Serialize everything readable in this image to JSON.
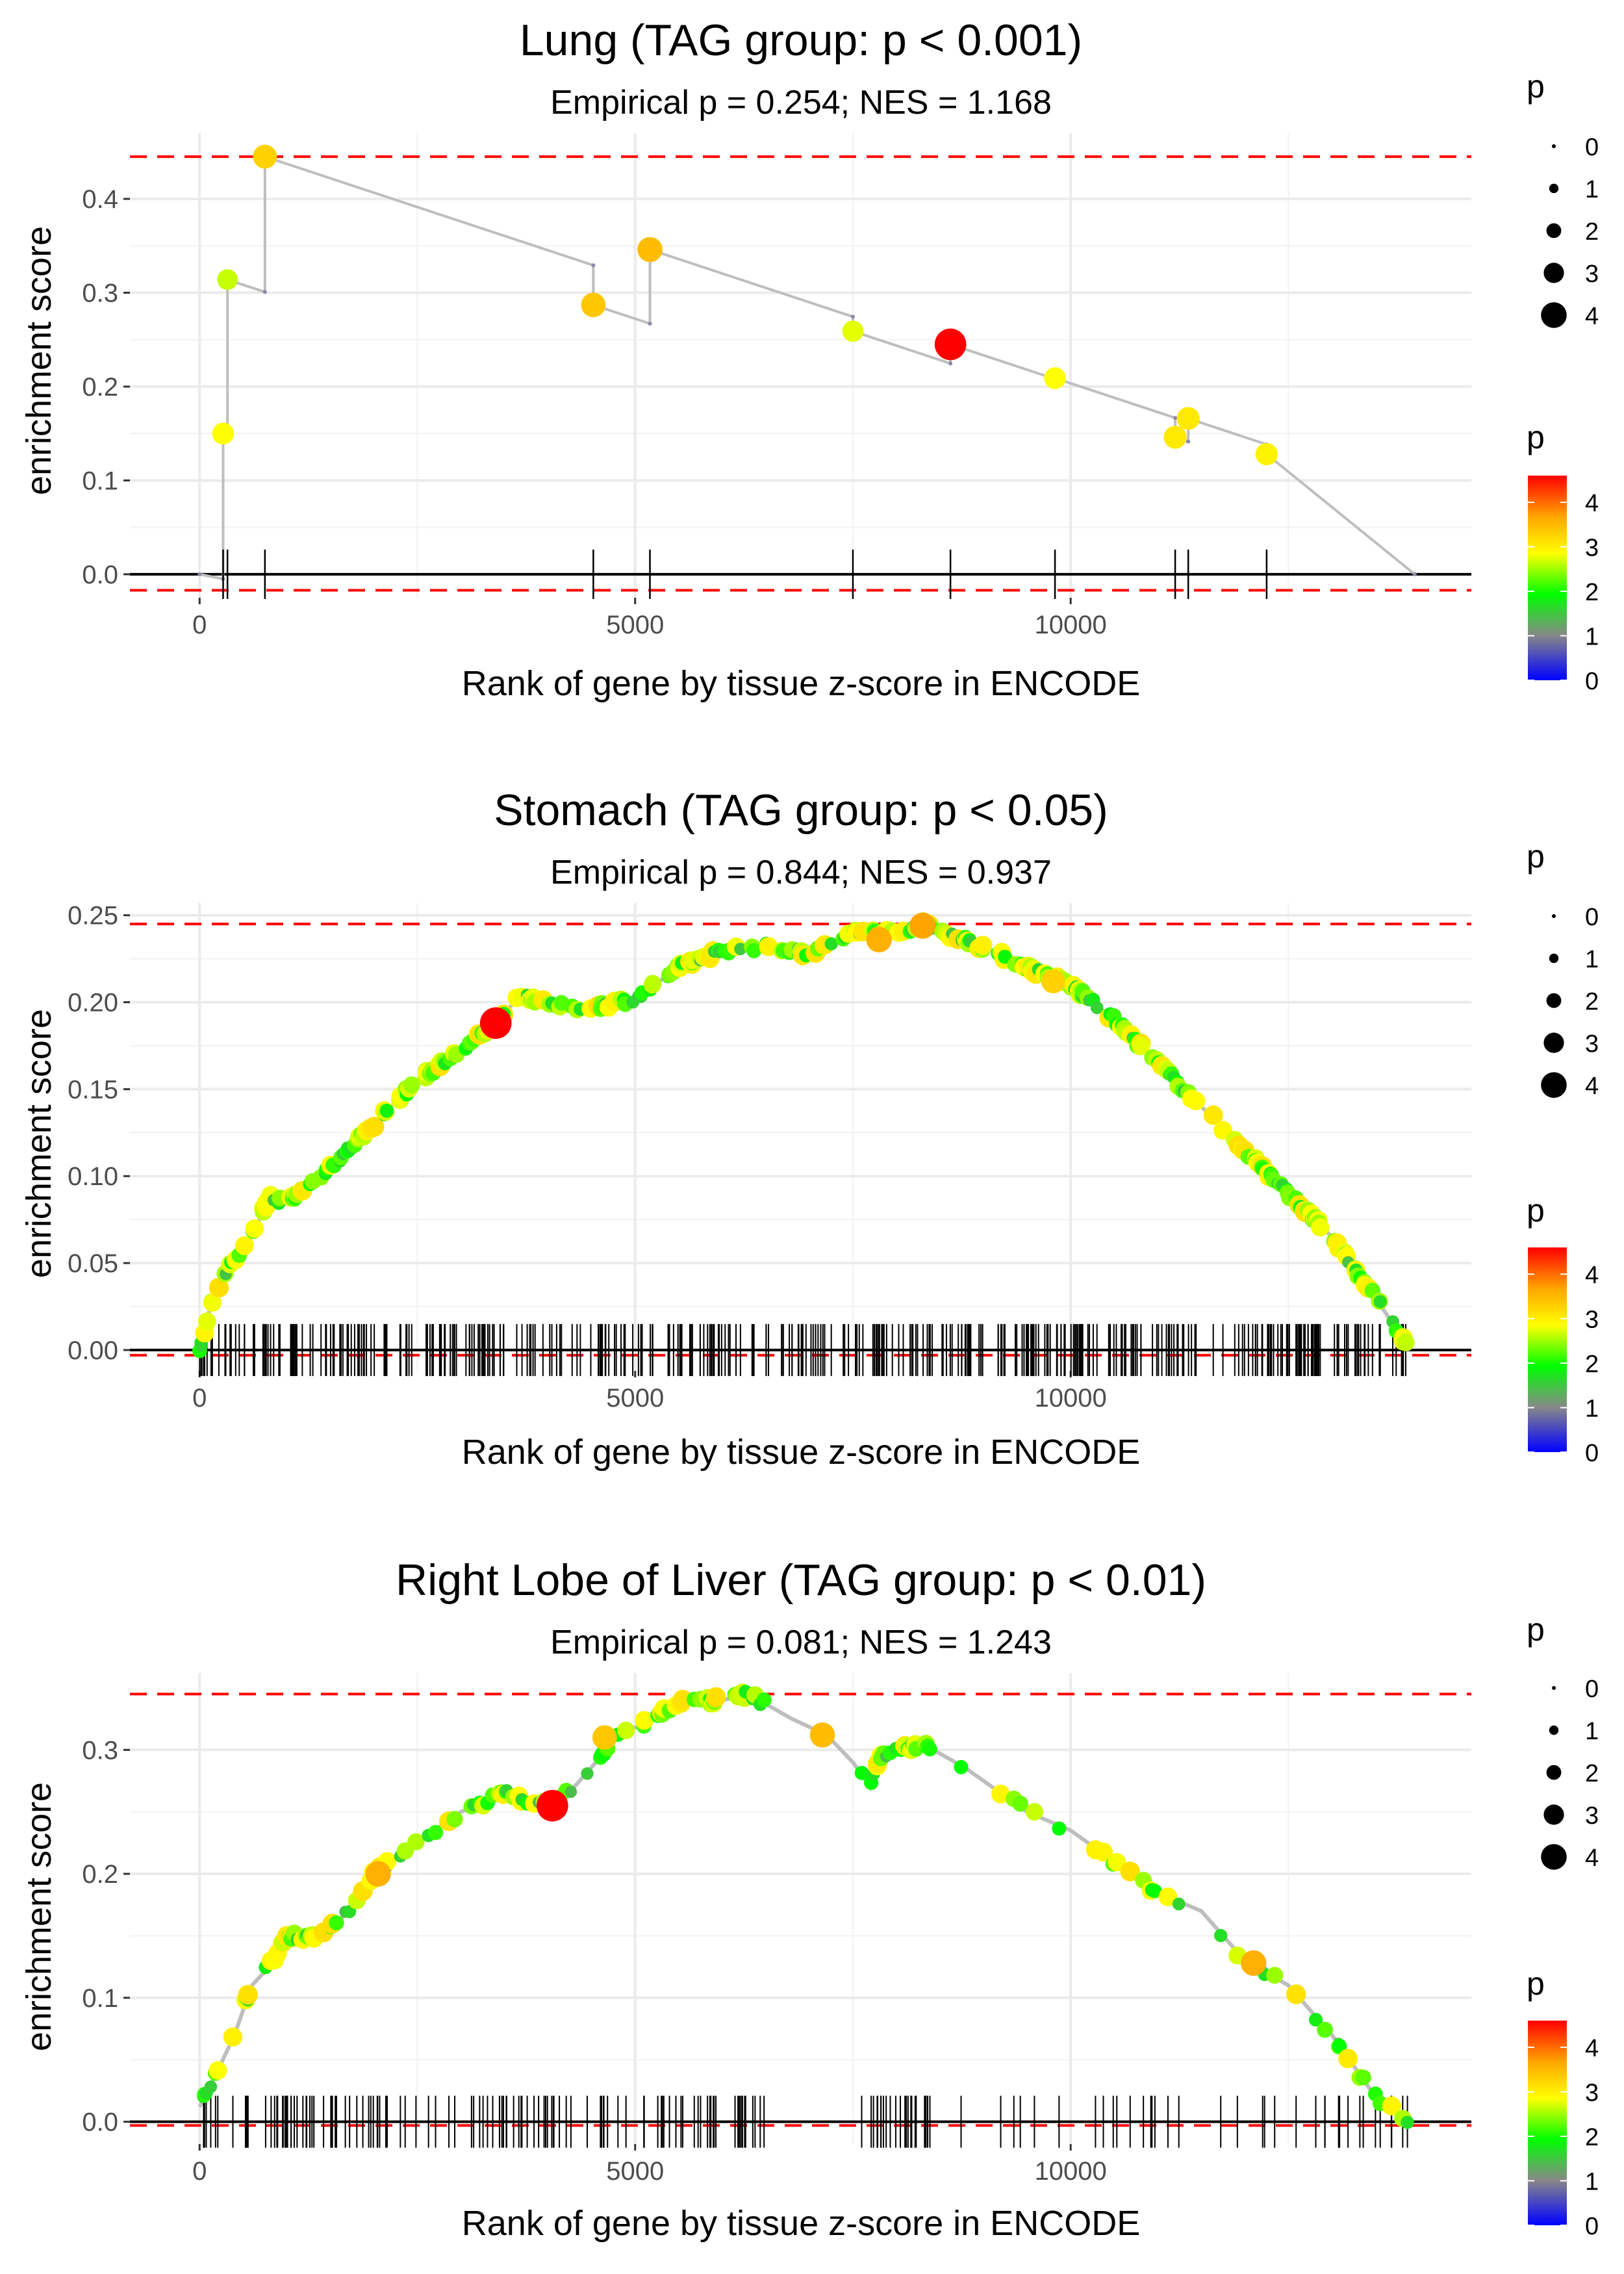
{
  "chart_data": [
    {
      "type": "line",
      "title": "Lung (TAG group: p < 0.001)",
      "subtitle": "Empirical p = 0.254; NES = 1.168",
      "xlabel": "Rank of gene by tissue z-score in ENCODE",
      "ylabel": "enrichment score",
      "xlim": [
        -800,
        14600
      ],
      "ylim": [
        -0.025,
        0.47
      ],
      "xticks": [
        0,
        5000,
        10000
      ],
      "xtick_labels": [
        "0",
        "5000",
        "10000"
      ],
      "yticks": [
        0,
        0.1,
        0.2,
        0.3,
        0.4
      ],
      "ytick_labels": [
        "0.0",
        "0.1",
        "0.2",
        "0.3",
        "0.4"
      ],
      "max_es": 0.445,
      "min_es": -0.017,
      "hits": [
        {
          "rank": 270,
          "es": 0.15,
          "p": 2.8
        },
        {
          "rank": 320,
          "es": 0.314,
          "p": 2.6
        },
        {
          "rank": 750,
          "es": 0.445,
          "p": 3.2
        },
        {
          "rank": 4520,
          "es": 0.287,
          "p": 3.3
        },
        {
          "rank": 5170,
          "es": 0.346,
          "p": 3.4
        },
        {
          "rank": 7500,
          "es": 0.259,
          "p": 2.7
        },
        {
          "rank": 8620,
          "es": 0.245,
          "p": 4.6
        },
        {
          "rank": 9820,
          "es": 0.209,
          "p": 2.8
        },
        {
          "rank": 11200,
          "es": 0.146,
          "p": 3.0
        },
        {
          "rank": 11350,
          "es": 0.166,
          "p": 3.0
        },
        {
          "rank": 12250,
          "es": 0.128,
          "p": 2.9
        }
      ],
      "end_rank": 13950,
      "size_legend_title": "p",
      "size_legend_labels": [
        "0",
        "1",
        "2",
        "3",
        "4"
      ],
      "color_legend_title": "p",
      "color_legend_labels": [
        "4",
        "3",
        "2",
        "1",
        "0"
      ]
    },
    {
      "type": "line",
      "title": "Stomach (TAG group: p < 0.05)",
      "subtitle": "Empirical p = 0.844; NES = 0.937",
      "xlabel": "Rank of gene by tissue z-score in ENCODE",
      "ylabel": "enrichment score",
      "xlim": [
        -800,
        14600
      ],
      "ylim": [
        -0.012,
        0.257
      ],
      "xticks": [
        0,
        5000,
        10000
      ],
      "xtick_labels": [
        "0",
        "5000",
        "10000"
      ],
      "yticks": [
        0,
        0.05,
        0.1,
        0.15,
        0.2,
        0.25
      ],
      "ytick_labels": [
        "0.00",
        "0.05",
        "0.10",
        "0.15",
        "0.20",
        "0.25"
      ],
      "max_es": 0.245,
      "min_es": -0.003,
      "hit_count": 420,
      "curve": [
        {
          "rank": 0,
          "es": 0.0
        },
        {
          "rank": 150,
          "es": 0.03
        },
        {
          "rank": 300,
          "es": 0.045
        },
        {
          "rank": 600,
          "es": 0.065
        },
        {
          "rank": 800,
          "es": 0.088
        },
        {
          "rank": 1000,
          "es": 0.085
        },
        {
          "rank": 1200,
          "es": 0.092
        },
        {
          "rank": 1600,
          "es": 0.11
        },
        {
          "rank": 2000,
          "es": 0.13
        },
        {
          "rank": 2500,
          "es": 0.155
        },
        {
          "rank": 3000,
          "es": 0.172
        },
        {
          "rank": 3400,
          "es": 0.188
        },
        {
          "rank": 3700,
          "es": 0.205
        },
        {
          "rank": 4000,
          "es": 0.198
        },
        {
          "rank": 4500,
          "es": 0.197
        },
        {
          "rank": 5000,
          "es": 0.202
        },
        {
          "rank": 5500,
          "es": 0.22
        },
        {
          "rank": 6000,
          "es": 0.23
        },
        {
          "rank": 6500,
          "es": 0.232
        },
        {
          "rank": 7000,
          "es": 0.228
        },
        {
          "rank": 7500,
          "es": 0.24
        },
        {
          "rank": 8000,
          "es": 0.24
        },
        {
          "rank": 8300,
          "es": 0.245
        },
        {
          "rank": 9000,
          "es": 0.232
        },
        {
          "rank": 9500,
          "es": 0.22
        },
        {
          "rank": 10000,
          "es": 0.21
        },
        {
          "rank": 10500,
          "es": 0.19
        },
        {
          "rank": 11000,
          "es": 0.165
        },
        {
          "rank": 11500,
          "es": 0.14
        },
        {
          "rank": 12000,
          "es": 0.115
        },
        {
          "rank": 12500,
          "es": 0.09
        },
        {
          "rank": 13000,
          "es": 0.065
        },
        {
          "rank": 13500,
          "es": 0.03
        },
        {
          "rank": 13900,
          "es": 0.0
        }
      ],
      "highlight_points": [
        {
          "rank": 3400,
          "es": 0.188,
          "p": 4.6
        },
        {
          "rank": 7800,
          "es": 0.236,
          "p": 3.5
        },
        {
          "rank": 8300,
          "es": 0.244,
          "p": 3.6
        },
        {
          "rank": 9800,
          "es": 0.212,
          "p": 3.2
        }
      ],
      "size_legend_title": "p",
      "size_legend_labels": [
        "0",
        "1",
        "2",
        "3",
        "4"
      ],
      "color_legend_title": "p",
      "color_legend_labels": [
        "4",
        "3",
        "2",
        "1",
        "0"
      ]
    },
    {
      "type": "line",
      "title": "Right Lobe of Liver (TAG group: p < 0.01)",
      "subtitle": "Empirical p = 0.081; NES = 1.243",
      "xlabel": "Rank of gene by tissue z-score in ENCODE",
      "ylabel": "enrichment score",
      "xlim": [
        -800,
        14600
      ],
      "ylim": [
        -0.018,
        0.362
      ],
      "xticks": [
        0,
        5000,
        10000
      ],
      "xtick_labels": [
        "0",
        "5000",
        "10000"
      ],
      "yticks": [
        0,
        0.1,
        0.2,
        0.3
      ],
      "ytick_labels": [
        "0.0",
        "0.1",
        "0.2",
        "0.3"
      ],
      "max_es": 0.345,
      "min_es": -0.003,
      "hit_count": 190,
      "curve": [
        {
          "rank": 0,
          "es": 0.012
        },
        {
          "rank": 200,
          "es": 0.04
        },
        {
          "rank": 400,
          "es": 0.07
        },
        {
          "rank": 600,
          "es": 0.11
        },
        {
          "rank": 800,
          "es": 0.125
        },
        {
          "rank": 1000,
          "es": 0.15
        },
        {
          "rank": 1400,
          "es": 0.15
        },
        {
          "rank": 1800,
          "es": 0.175
        },
        {
          "rank": 2000,
          "es": 0.2
        },
        {
          "rank": 2500,
          "es": 0.225
        },
        {
          "rank": 3000,
          "es": 0.25
        },
        {
          "rank": 3500,
          "es": 0.265
        },
        {
          "rank": 4000,
          "es": 0.255
        },
        {
          "rank": 4300,
          "es": 0.27
        },
        {
          "rank": 4800,
          "es": 0.31
        },
        {
          "rank": 5300,
          "es": 0.33
        },
        {
          "rank": 5600,
          "es": 0.34
        },
        {
          "rank": 6000,
          "es": 0.34
        },
        {
          "rank": 6300,
          "es": 0.345
        },
        {
          "rank": 6800,
          "es": 0.325
        },
        {
          "rank": 7200,
          "es": 0.312
        },
        {
          "rank": 7500,
          "es": 0.29
        },
        {
          "rank": 7700,
          "es": 0.27
        },
        {
          "rank": 7800,
          "es": 0.295
        },
        {
          "rank": 8300,
          "es": 0.305
        },
        {
          "rank": 8800,
          "es": 0.285
        },
        {
          "rank": 9500,
          "es": 0.25
        },
        {
          "rank": 10000,
          "es": 0.235
        },
        {
          "rank": 10500,
          "es": 0.21
        },
        {
          "rank": 11000,
          "es": 0.185
        },
        {
          "rank": 11500,
          "es": 0.17
        },
        {
          "rank": 12000,
          "es": 0.13
        },
        {
          "rank": 12500,
          "es": 0.11
        },
        {
          "rank": 13000,
          "es": 0.07
        },
        {
          "rank": 13500,
          "es": 0.02
        },
        {
          "rank": 13900,
          "es": 0.0
        }
      ],
      "highlight_points": [
        {
          "rank": 2050,
          "es": 0.2,
          "p": 3.5
        },
        {
          "rank": 4050,
          "es": 0.255,
          "p": 4.6
        },
        {
          "rank": 4650,
          "es": 0.31,
          "p": 3.3
        },
        {
          "rank": 7150,
          "es": 0.312,
          "p": 3.4
        },
        {
          "rank": 12100,
          "es": 0.128,
          "p": 3.5
        }
      ],
      "size_legend_title": "p",
      "size_legend_labels": [
        "0",
        "1",
        "2",
        "3",
        "4"
      ],
      "color_legend_title": "p",
      "color_legend_labels": [
        "4",
        "3",
        "2",
        "1",
        "0"
      ]
    }
  ]
}
